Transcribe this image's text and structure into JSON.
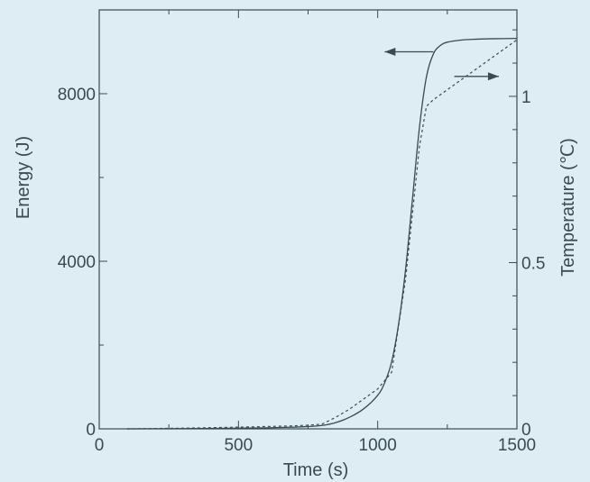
{
  "chart_data": {
    "type": "line",
    "title": "",
    "xlabel": "Time (s)",
    "ylabel_left": "Energy (J)",
    "ylabel_right": "Temperature (℃)",
    "xlim": [
      0,
      1500
    ],
    "ylim_left": [
      0,
      10000
    ],
    "ylim_right": [
      0,
      1.26
    ],
    "x_ticks": [
      0,
      500,
      1000,
      1500
    ],
    "y_left_ticks": [
      0,
      4000,
      8000
    ],
    "y_right_ticks": [
      0,
      0.5,
      1
    ],
    "x_tick_labels": [
      "0",
      "500",
      "1000",
      "1500"
    ],
    "y_left_tick_labels": [
      "0",
      "4000",
      "8000"
    ],
    "y_right_tick_labels": [
      "0",
      "0.5",
      "1"
    ],
    "grid": false,
    "legend": "none",
    "series": [
      {
        "axis": "left",
        "style": "solid",
        "x": [
          100,
          300,
          500,
          600,
          700,
          750,
          800,
          850,
          900,
          950,
          1000,
          1025,
          1050,
          1075,
          1100,
          1125,
          1150,
          1175,
          1200,
          1225,
          1250,
          1300,
          1350,
          1400,
          1450,
          1500
        ],
        "values": [
          0,
          5,
          15,
          25,
          40,
          55,
          80,
          150,
          280,
          480,
          800,
          1100,
          1600,
          2500,
          3800,
          5500,
          7200,
          8400,
          8950,
          9150,
          9230,
          9280,
          9300,
          9310,
          9315,
          9320
        ]
      },
      {
        "axis": "right",
        "style": "dashed",
        "x": [
          100,
          300,
          500,
          600,
          700,
          750,
          800,
          850,
          900,
          950,
          1000,
          1050,
          1100,
          1150,
          1175,
          1200,
          1300,
          1400,
          1500
        ],
        "values": [
          0,
          0.002,
          0.005,
          0.007,
          0.009,
          0.011,
          0.014,
          0.035,
          0.06,
          0.09,
          0.12,
          0.17,
          0.45,
          0.85,
          0.97,
          0.99,
          1.05,
          1.11,
          1.17
        ]
      }
    ],
    "annotations": [
      {
        "type": "arrow",
        "direction": "left",
        "points_to": "left-axis",
        "series": 0
      },
      {
        "type": "arrow",
        "direction": "right",
        "points_to": "right-axis",
        "series": 1
      }
    ]
  }
}
